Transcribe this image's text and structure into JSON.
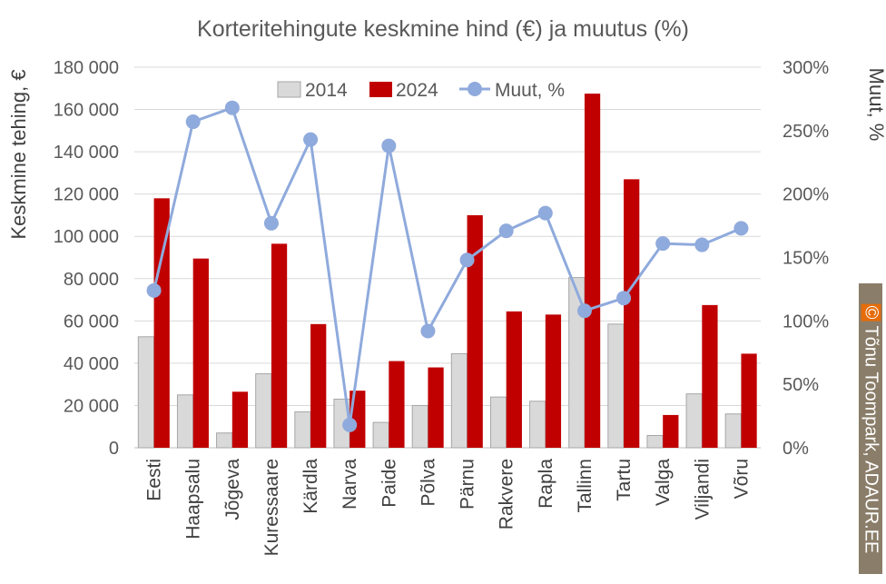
{
  "chart_data": {
    "type": "bar",
    "title": "Korteritehingute keskmine hind (€) ja muutus (%)",
    "ylabel": "Keskmine tehing, €",
    "y2label": "Muut, %",
    "ylim": [
      0,
      180000
    ],
    "y2lim": [
      0,
      300
    ],
    "yticks": [
      "0",
      "20 000",
      "40 000",
      "60 000",
      "80 000",
      "100 000",
      "120 000",
      "140 000",
      "160 000",
      "180 000"
    ],
    "y2ticks": [
      "0%",
      "50%",
      "100%",
      "150%",
      "200%",
      "250%",
      "300%"
    ],
    "grid": true,
    "legend_position": "top",
    "categories": [
      "Eesti",
      "Haapsalu",
      "Jõgeva",
      "Kuressaare",
      "Kärdla",
      "Narva",
      "Paide",
      "Põlva",
      "Pärnu",
      "Rakvere",
      "Rapla",
      "Tallinn",
      "Tartu",
      "Valga",
      "Viljandi",
      "Võru"
    ],
    "series": [
      {
        "name": "2014",
        "type": "bar",
        "axis": "left",
        "color": "#d9d9d9",
        "values": [
          52500,
          25000,
          7000,
          35000,
          17000,
          23000,
          12000,
          20000,
          44500,
          24000,
          22000,
          80500,
          58500,
          5800,
          25500,
          16000
        ]
      },
      {
        "name": "2024",
        "type": "bar",
        "axis": "left",
        "color": "#c00000",
        "values": [
          118000,
          89500,
          26500,
          96500,
          58500,
          27000,
          41000,
          38000,
          110000,
          64500,
          63000,
          167500,
          127000,
          15500,
          67500,
          44500
        ]
      },
      {
        "name": "Muut, %",
        "type": "line",
        "axis": "right",
        "color": "#8faadc",
        "values": [
          124,
          257,
          268,
          177,
          243,
          18,
          238,
          92,
          148,
          171,
          185,
          108,
          118,
          161,
          160,
          173
        ]
      }
    ]
  },
  "credit": {
    "symbol": "©",
    "text": "Tõnu Toompark, ADAUR.EE"
  }
}
